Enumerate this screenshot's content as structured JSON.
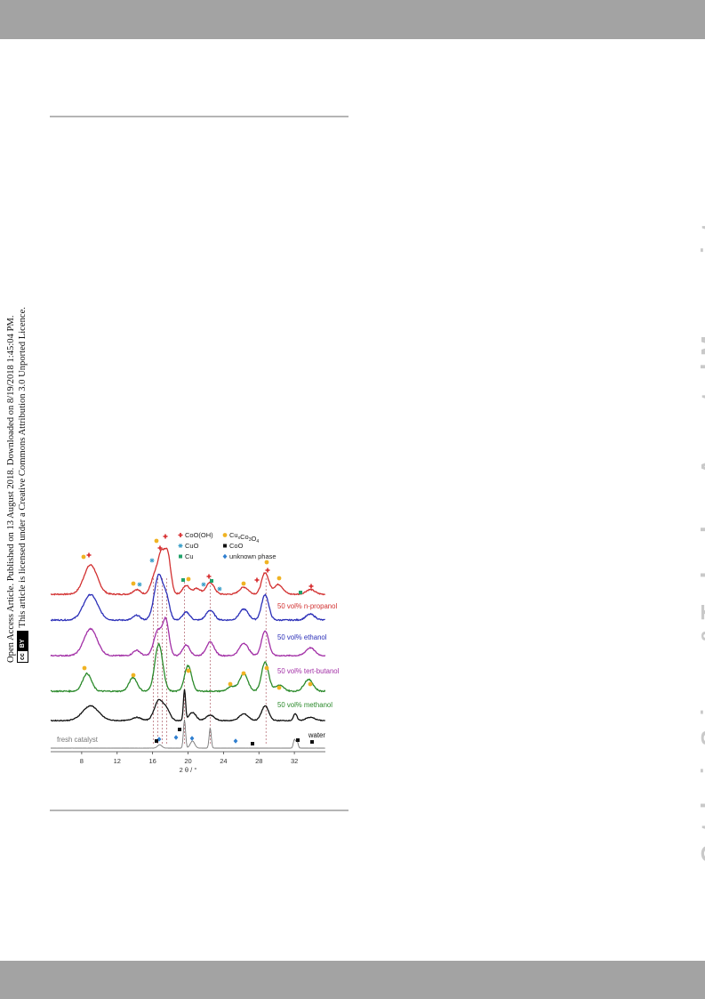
{
  "side_notice": {
    "line1": "Open Access Article. Published on 13 August 2018. Downloaded on 8/19/2018 1:45:04 PM.",
    "line2": "This article is licensed under a Creative Commons Attribution 3.0 Unported Licence.",
    "badge_cc": "cc",
    "badge_by": "BY"
  },
  "watermark": "Catalysis Science & Technology Accepted Manuscript",
  "chart_data": {
    "type": "line",
    "xlabel": "2 θ / °",
    "xlim": [
      4.5,
      35.5
    ],
    "x_ticks": [
      8,
      12,
      16,
      20,
      24,
      28,
      32
    ],
    "legend": [
      {
        "symbol": "cross",
        "color": "#d6292b",
        "label": "CoO(OH)"
      },
      {
        "symbol": "dot",
        "color": "#f0b323",
        "label": "Cu",
        "sub": "x",
        "label2": "Co",
        "sub2": "3",
        "label3": "O",
        "sub3": "4"
      },
      {
        "symbol": "star",
        "color": "#3a9fc9",
        "label": "CuO"
      },
      {
        "symbol": "square-black",
        "color": "#111111",
        "label": "CoO"
      },
      {
        "symbol": "square",
        "color": "#21a36b",
        "label": "Cu"
      },
      {
        "symbol": "diamond",
        "color": "#2f7fd0",
        "label": "unknown phase"
      }
    ],
    "series": [
      {
        "name": "50 vol% n-propanol",
        "color": "#d23030",
        "baseline": 0,
        "peaks": [
          [
            9.0,
            0.75,
            0.75
          ],
          [
            14.2,
            0.12,
            0.4
          ],
          [
            16.3,
            0.5,
            0.45
          ],
          [
            17.0,
            0.85,
            0.35
          ],
          [
            17.7,
            1.0,
            0.35
          ],
          [
            19.8,
            0.22,
            0.4
          ],
          [
            21.0,
            0.15,
            0.4
          ],
          [
            22.5,
            0.3,
            0.45
          ],
          [
            26.3,
            0.18,
            0.5
          ],
          [
            28.7,
            0.55,
            0.4
          ],
          [
            30.2,
            0.25,
            0.5
          ],
          [
            33.8,
            0.12,
            0.5
          ]
        ]
      },
      {
        "name": "50 vol% ethanol",
        "color": "#2b2fb8",
        "baseline": 0,
        "peaks": [
          [
            9.0,
            0.65,
            0.8
          ],
          [
            14.2,
            0.12,
            0.4
          ],
          [
            16.7,
            1.15,
            0.5
          ],
          [
            17.6,
            0.45,
            0.35
          ],
          [
            19.8,
            0.2,
            0.4
          ],
          [
            22.5,
            0.25,
            0.45
          ],
          [
            26.3,
            0.28,
            0.5
          ],
          [
            28.7,
            0.65,
            0.4
          ],
          [
            33.8,
            0.15,
            0.5
          ]
        ]
      },
      {
        "name": "50 vol% tert-butanol",
        "color": "#a22fa6",
        "baseline": 0,
        "peaks": [
          [
            9.0,
            0.75,
            0.75
          ],
          [
            14.2,
            0.15,
            0.4
          ],
          [
            16.6,
            0.7,
            0.45
          ],
          [
            17.5,
            0.95,
            0.35
          ],
          [
            19.8,
            0.3,
            0.4
          ],
          [
            22.5,
            0.38,
            0.45
          ],
          [
            26.3,
            0.35,
            0.5
          ],
          [
            28.7,
            0.7,
            0.4
          ],
          [
            33.8,
            0.22,
            0.5
          ]
        ]
      },
      {
        "name": "50 vol% methanol",
        "color": "#2b8a2b",
        "baseline": 0,
        "peaks": [
          [
            8.6,
            0.45,
            0.5
          ],
          [
            13.8,
            0.35,
            0.45
          ],
          [
            16.7,
            1.2,
            0.45
          ],
          [
            20.0,
            0.65,
            0.4
          ],
          [
            25.0,
            0.12,
            0.5
          ],
          [
            26.3,
            0.45,
            0.45
          ],
          [
            28.7,
            0.75,
            0.4
          ],
          [
            30.3,
            0.15,
            0.5
          ],
          [
            33.6,
            0.3,
            0.5
          ]
        ]
      },
      {
        "name": "water",
        "color": "#111111",
        "baseline": 0,
        "peaks": [
          [
            9.0,
            0.55,
            0.9
          ],
          [
            14.2,
            0.12,
            0.5
          ],
          [
            16.7,
            0.75,
            0.5
          ],
          [
            17.6,
            0.35,
            0.4
          ],
          [
            19.6,
            1.15,
            0.12
          ],
          [
            20.5,
            0.3,
            0.4
          ],
          [
            22.5,
            0.2,
            0.45
          ],
          [
            26.3,
            0.25,
            0.5
          ],
          [
            28.7,
            0.55,
            0.4
          ],
          [
            32.1,
            0.25,
            0.2
          ],
          [
            33.8,
            0.12,
            0.5
          ]
        ]
      },
      {
        "name": "fresh catalyst",
        "color": "#777777",
        "baseline": 0,
        "peaks": [
          [
            16.8,
            0.12,
            0.25
          ],
          [
            19.6,
            1.0,
            0.12
          ],
          [
            20.5,
            0.25,
            0.25
          ],
          [
            22.5,
            0.7,
            0.12
          ],
          [
            32.0,
            0.3,
            0.12
          ],
          [
            32.3,
            0.25,
            0.12
          ]
        ]
      }
    ],
    "reference_lines_2theta": [
      16.1,
      16.6,
      17.1,
      17.6,
      19.6,
      22.5,
      28.8
    ]
  }
}
